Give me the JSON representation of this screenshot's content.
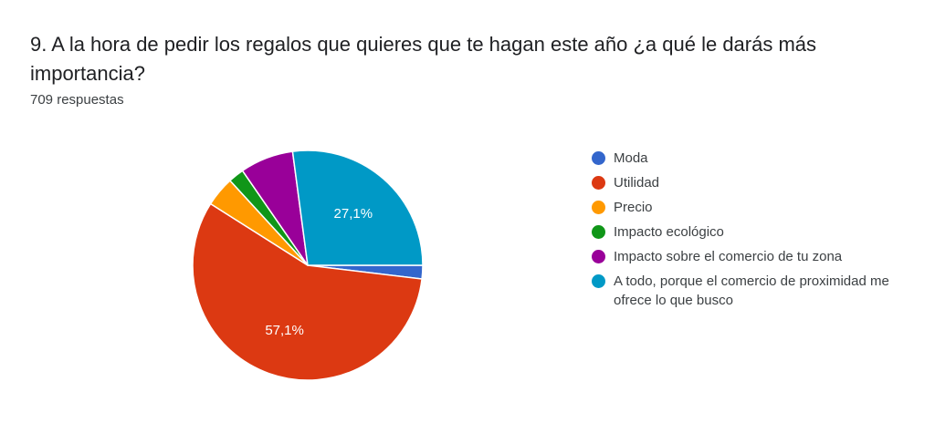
{
  "question": "9. A la hora de pedir los regalos que quieres que te hagan este año ¿a qué le darás más importancia?",
  "responses": "709 respuestas",
  "chart_data": {
    "type": "pie",
    "categories": [
      "Moda",
      "Utilidad",
      "Precio",
      "Impacto ecológico",
      "Impacto sobre el comercio de tu zona",
      "A todo, porque el comercio de proximidad me ofrece lo que busco"
    ],
    "values": [
      1.9,
      57.1,
      4.2,
      2.2,
      7.5,
      27.1
    ],
    "data_labels": [
      "",
      "57,1%",
      "",
      "",
      "",
      "27,1%"
    ],
    "colors": [
      "#3366cc",
      "#dc3912",
      "#ff9900",
      "#109618",
      "#990099",
      "#0099c6"
    ],
    "legend_position": "right"
  }
}
